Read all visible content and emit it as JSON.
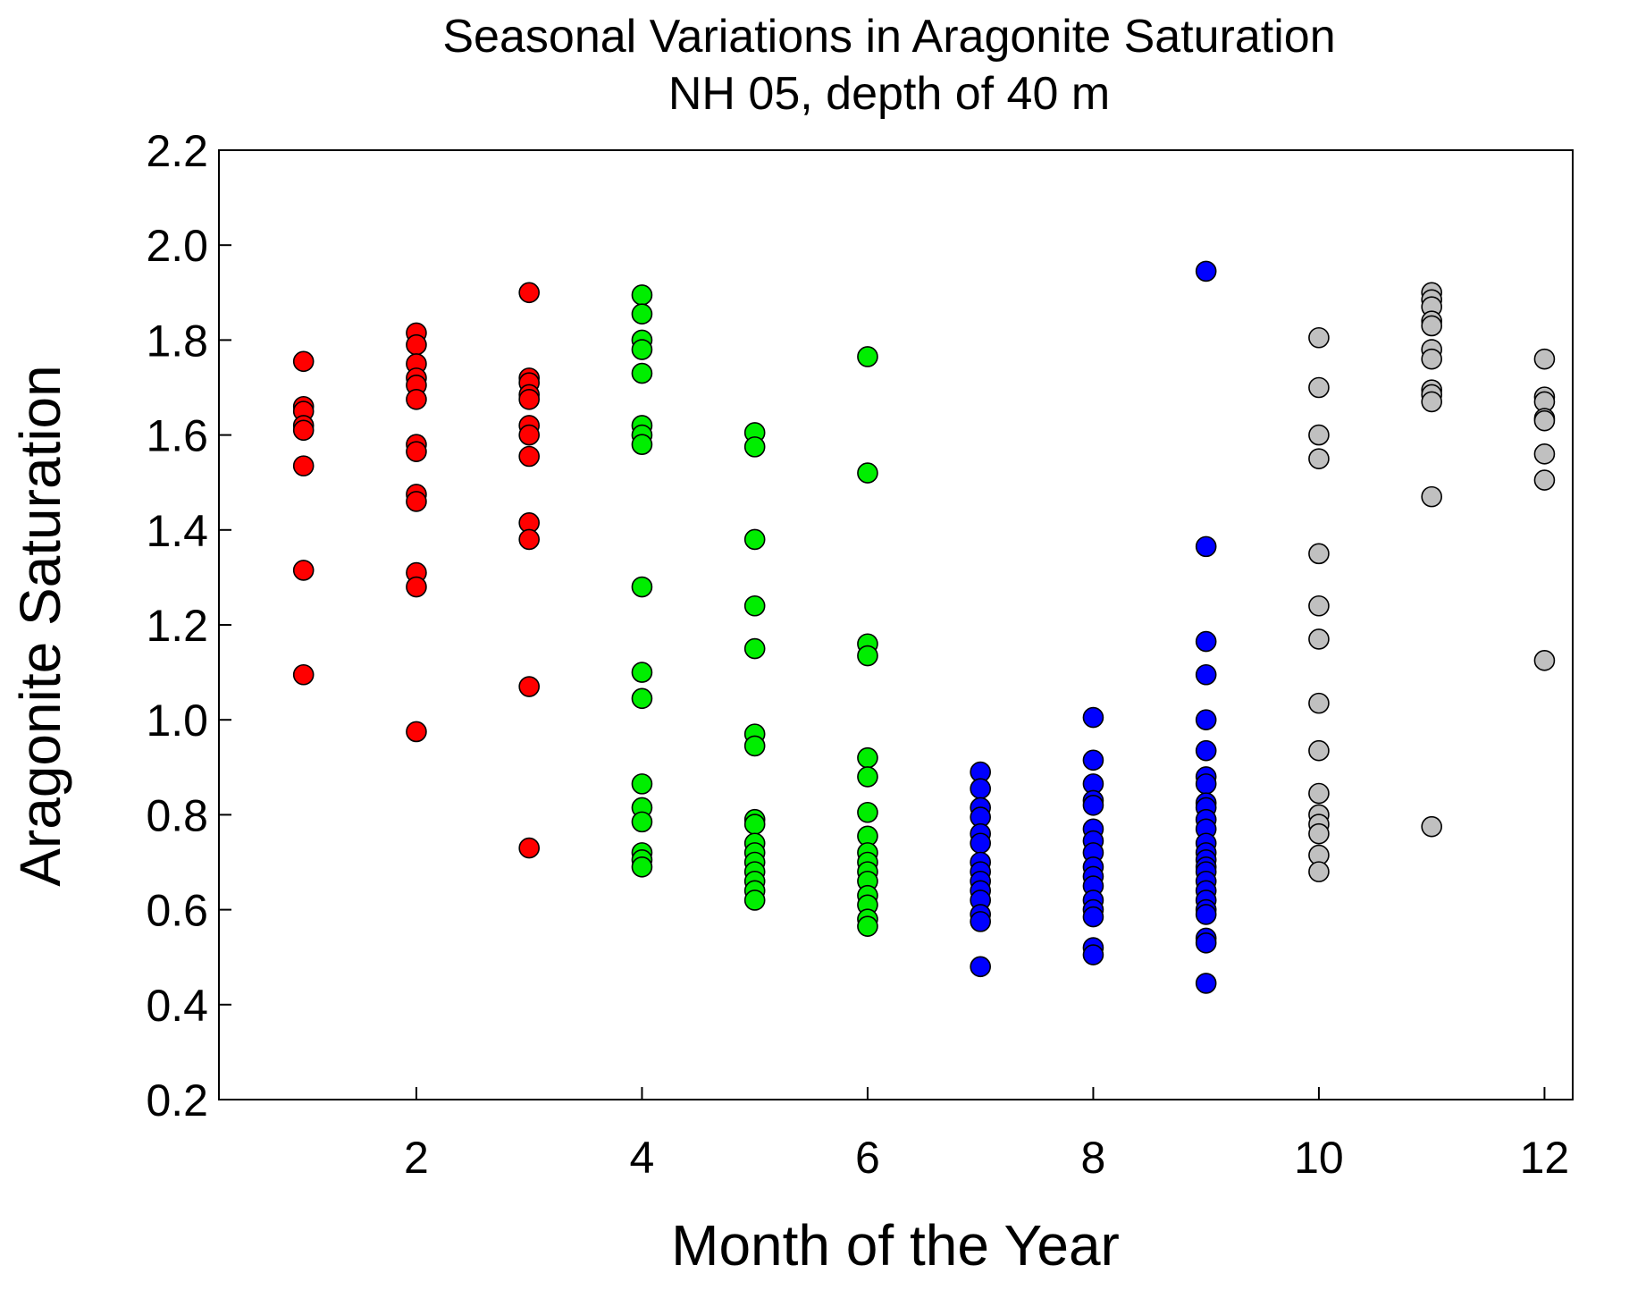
{
  "chart_data": {
    "type": "scatter",
    "title": "Seasonal Variations in Aragonite Saturation",
    "subtitle": "NH 05, depth of 40 m",
    "xlabel": "Month of the Year",
    "ylabel": "Aragonite Saturation",
    "xlim": [
      0.25,
      12.25
    ],
    "ylim": [
      0.2,
      2.2
    ],
    "x_ticks": [
      "2",
      "4",
      "6",
      "8",
      "10",
      "12"
    ],
    "y_ticks": [
      "0.2",
      "0.4",
      "0.6",
      "0.8",
      "1.0",
      "1.2",
      "1.4",
      "1.6",
      "1.8",
      "2.0",
      "2.2"
    ],
    "grid": false,
    "legend": "none",
    "colors": {
      "winter": "#ff0000",
      "spring": "#00ee00",
      "summer": "#0000ff",
      "fall": "#c0c0c0",
      "marker_edge": "#000000"
    },
    "series": [
      {
        "color_key": "winter",
        "points": [
          [
            1,
            1.755
          ],
          [
            1,
            1.66
          ],
          [
            1,
            1.65
          ],
          [
            1,
            1.62
          ],
          [
            1,
            1.61
          ],
          [
            1,
            1.535
          ],
          [
            1,
            1.315
          ],
          [
            1,
            1.095
          ],
          [
            2,
            1.815
          ],
          [
            2,
            1.79
          ],
          [
            2,
            1.75
          ],
          [
            2,
            1.72
          ],
          [
            2,
            1.705
          ],
          [
            2,
            1.675
          ],
          [
            2,
            1.58
          ],
          [
            2,
            1.565
          ],
          [
            2,
            1.475
          ],
          [
            2,
            1.46
          ],
          [
            2,
            1.31
          ],
          [
            2,
            1.28
          ],
          [
            2,
            0.975
          ],
          [
            3,
            1.9
          ],
          [
            3,
            1.72
          ],
          [
            3,
            1.71
          ],
          [
            3,
            1.685
          ],
          [
            3,
            1.675
          ],
          [
            3,
            1.62
          ],
          [
            3,
            1.6
          ],
          [
            3,
            1.555
          ],
          [
            3,
            1.415
          ],
          [
            3,
            1.38
          ],
          [
            3,
            1.07
          ],
          [
            3,
            0.73
          ]
        ]
      },
      {
        "color_key": "spring",
        "points": [
          [
            4,
            1.895
          ],
          [
            4,
            1.855
          ],
          [
            4,
            1.8
          ],
          [
            4,
            1.78
          ],
          [
            4,
            1.73
          ],
          [
            4,
            1.62
          ],
          [
            4,
            1.6
          ],
          [
            4,
            1.58
          ],
          [
            4,
            1.28
          ],
          [
            4,
            1.1
          ],
          [
            4,
            1.045
          ],
          [
            4,
            0.865
          ],
          [
            4,
            0.815
          ],
          [
            4,
            0.785
          ],
          [
            4,
            0.72
          ],
          [
            4,
            0.705
          ],
          [
            4,
            0.69
          ],
          [
            5,
            1.605
          ],
          [
            5,
            1.575
          ],
          [
            5,
            1.38
          ],
          [
            5,
            1.24
          ],
          [
            5,
            1.15
          ],
          [
            5,
            0.97
          ],
          [
            5,
            0.945
          ],
          [
            5,
            0.79
          ],
          [
            5,
            0.78
          ],
          [
            5,
            0.74
          ],
          [
            5,
            0.72
          ],
          [
            5,
            0.7
          ],
          [
            5,
            0.68
          ],
          [
            5,
            0.66
          ],
          [
            5,
            0.64
          ],
          [
            5,
            0.62
          ],
          [
            6,
            1.765
          ],
          [
            6,
            1.52
          ],
          [
            6,
            1.16
          ],
          [
            6,
            1.135
          ],
          [
            6,
            0.92
          ],
          [
            6,
            0.88
          ],
          [
            6,
            0.805
          ],
          [
            6,
            0.755
          ],
          [
            6,
            0.72
          ],
          [
            6,
            0.7
          ],
          [
            6,
            0.68
          ],
          [
            6,
            0.66
          ],
          [
            6,
            0.63
          ],
          [
            6,
            0.61
          ],
          [
            6,
            0.58
          ],
          [
            6,
            0.565
          ]
        ]
      },
      {
        "color_key": "summer",
        "points": [
          [
            7,
            0.89
          ],
          [
            7,
            0.855
          ],
          [
            7,
            0.815
          ],
          [
            7,
            0.795
          ],
          [
            7,
            0.76
          ],
          [
            7,
            0.74
          ],
          [
            7,
            0.7
          ],
          [
            7,
            0.68
          ],
          [
            7,
            0.66
          ],
          [
            7,
            0.64
          ],
          [
            7,
            0.62
          ],
          [
            7,
            0.59
          ],
          [
            7,
            0.575
          ],
          [
            7,
            0.48
          ],
          [
            8,
            1.005
          ],
          [
            8,
            0.915
          ],
          [
            8,
            0.865
          ],
          [
            8,
            0.83
          ],
          [
            8,
            0.82
          ],
          [
            8,
            0.77
          ],
          [
            8,
            0.745
          ],
          [
            8,
            0.72
          ],
          [
            8,
            0.69
          ],
          [
            8,
            0.67
          ],
          [
            8,
            0.65
          ],
          [
            8,
            0.62
          ],
          [
            8,
            0.6
          ],
          [
            8,
            0.585
          ],
          [
            8,
            0.52
          ],
          [
            8,
            0.505
          ],
          [
            9,
            1.945
          ],
          [
            9,
            1.365
          ],
          [
            9,
            1.165
          ],
          [
            9,
            1.095
          ],
          [
            9,
            1.0
          ],
          [
            9,
            0.935
          ],
          [
            9,
            0.88
          ],
          [
            9,
            0.865
          ],
          [
            9,
            0.825
          ],
          [
            9,
            0.815
          ],
          [
            9,
            0.79
          ],
          [
            9,
            0.77
          ],
          [
            9,
            0.74
          ],
          [
            9,
            0.72
          ],
          [
            9,
            0.705
          ],
          [
            9,
            0.69
          ],
          [
            9,
            0.68
          ],
          [
            9,
            0.66
          ],
          [
            9,
            0.64
          ],
          [
            9,
            0.62
          ],
          [
            9,
            0.6
          ],
          [
            9,
            0.59
          ],
          [
            9,
            0.54
          ],
          [
            9,
            0.53
          ],
          [
            9,
            0.445
          ]
        ]
      },
      {
        "color_key": "fall",
        "points": [
          [
            10,
            1.805
          ],
          [
            10,
            1.7
          ],
          [
            10,
            1.6
          ],
          [
            10,
            1.55
          ],
          [
            10,
            1.35
          ],
          [
            10,
            1.24
          ],
          [
            10,
            1.17
          ],
          [
            10,
            1.035
          ],
          [
            10,
            0.935
          ],
          [
            10,
            0.845
          ],
          [
            10,
            0.8
          ],
          [
            10,
            0.78
          ],
          [
            10,
            0.76
          ],
          [
            10,
            0.715
          ],
          [
            10,
            0.68
          ],
          [
            11,
            1.9
          ],
          [
            11,
            1.885
          ],
          [
            11,
            1.87
          ],
          [
            11,
            1.84
          ],
          [
            11,
            1.83
          ],
          [
            11,
            1.78
          ],
          [
            11,
            1.76
          ],
          [
            11,
            1.695
          ],
          [
            11,
            1.685
          ],
          [
            11,
            1.67
          ],
          [
            11,
            1.47
          ],
          [
            11,
            0.775
          ],
          [
            12,
            1.76
          ],
          [
            12,
            1.68
          ],
          [
            12,
            1.67
          ],
          [
            12,
            1.635
          ],
          [
            12,
            1.63
          ],
          [
            12,
            1.56
          ],
          [
            12,
            1.505
          ],
          [
            12,
            1.125
          ]
        ]
      }
    ]
  }
}
